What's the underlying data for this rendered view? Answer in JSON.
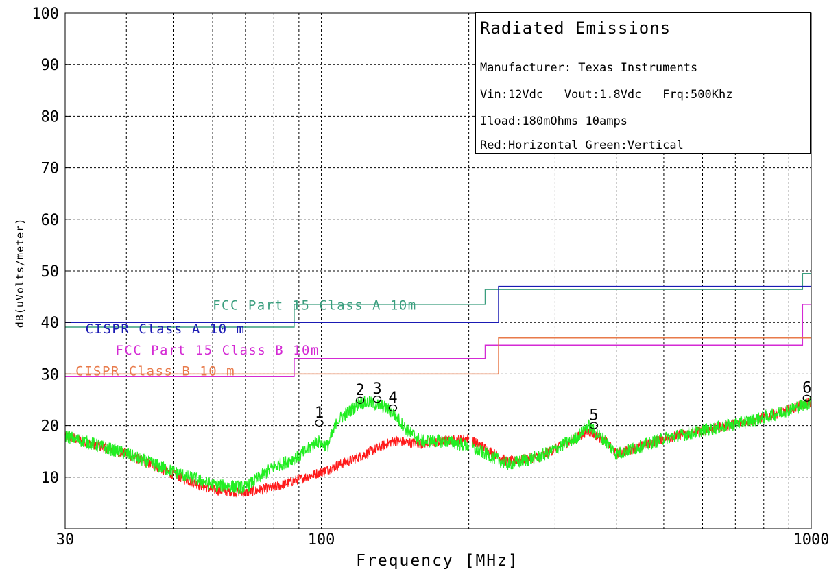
{
  "chart_data": {
    "type": "line",
    "title": "Radiated Emissions",
    "xlabel": "Frequency [MHz]",
    "ylabel": "dB(uVolts/meter)",
    "x_scale": "log",
    "xlim": [
      30,
      1000
    ],
    "ylim": [
      0,
      100
    ],
    "x_tick_labels": [
      {
        "value": 30,
        "label": "30"
      },
      {
        "value": 100,
        "label": "100"
      },
      {
        "value": 1000,
        "label": "1000"
      }
    ],
    "y_tick_labels": [
      "10",
      "20",
      "30",
      "40",
      "50",
      "60",
      "70",
      "80",
      "90",
      "100"
    ],
    "y_ticks": [
      10,
      20,
      30,
      40,
      50,
      60,
      70,
      80,
      90,
      100
    ],
    "grid": true,
    "info": {
      "manufacturer": "Manufacturer: Texas Instruments",
      "conditions": "Vin:12Vdc   Vout:1.8Vdc   Frq:500Khz",
      "load": "Iload:180mOhms 10amps",
      "legend": "Red:Horizontal Green:Vertical"
    },
    "limit_lines": [
      {
        "name": "FCC Part 15 Class A 10m",
        "color": "#3a9e7e",
        "points": [
          [
            30,
            39.1
          ],
          [
            88,
            39.1
          ],
          [
            88,
            43.5
          ],
          [
            216,
            43.5
          ],
          [
            216,
            46.4
          ],
          [
            960,
            46.4
          ],
          [
            960,
            49.5
          ],
          [
            1000,
            49.5
          ]
        ],
        "label": {
          "x": 60,
          "y": 42.5
        }
      },
      {
        "name": "CISPR Class A 10 m",
        "color": "#1a1ab4",
        "points": [
          [
            30,
            40
          ],
          [
            230,
            40
          ],
          [
            230,
            47
          ],
          [
            1000,
            47
          ]
        ],
        "label": {
          "x": 33,
          "y": 37.9
        }
      },
      {
        "name": "FCC Part 15  Class B 10m",
        "color": "#d42ad4",
        "points": [
          [
            30,
            29.5
          ],
          [
            88,
            29.5
          ],
          [
            88,
            33
          ],
          [
            216,
            33
          ],
          [
            216,
            35.6
          ],
          [
            960,
            35.6
          ],
          [
            960,
            43.5
          ],
          [
            1000,
            43.5
          ]
        ],
        "label": {
          "x": 38,
          "y": 33.8
        }
      },
      {
        "name": "CISPR Class B 10 m",
        "color": "#e87a4a",
        "points": [
          [
            30,
            30
          ],
          [
            230,
            30
          ],
          [
            230,
            37
          ],
          [
            1000,
            37
          ]
        ],
        "label": {
          "x": 31.5,
          "y": 29.7
        }
      }
    ],
    "series": [
      {
        "name": "Horizontal",
        "color": "#ff1a1a",
        "x": [
          30,
          40,
          50,
          60,
          70,
          80,
          100,
          120,
          140,
          160,
          180,
          200,
          240,
          280,
          330,
          350,
          380,
          400,
          450,
          500,
          600,
          800,
          1000
        ],
        "y": [
          18,
          14.5,
          10.5,
          7.5,
          7,
          8,
          11,
          14,
          17,
          16.5,
          17,
          17.5,
          13,
          14,
          17.5,
          19,
          17,
          14.5,
          16,
          17.5,
          19,
          21.5,
          24.5
        ],
        "noise": 1.0
      },
      {
        "name": "Vertical",
        "color": "#22ee22",
        "x": [
          30,
          40,
          50,
          60,
          70,
          80,
          90,
          98,
          103,
          108,
          115,
          120,
          125,
          130,
          135,
          140,
          150,
          160,
          180,
          200,
          240,
          280,
          330,
          350,
          380,
          400,
          450,
          500,
          600,
          800,
          1000
        ],
        "y": [
          18,
          14.5,
          11,
          8.5,
          8,
          12,
          14,
          17,
          16,
          21,
          23,
          24.5,
          24.5,
          24,
          23.5,
          22.5,
          19,
          17,
          17,
          16,
          12.5,
          14,
          17.5,
          20,
          17,
          14.5,
          16,
          17.5,
          19,
          21.5,
          24.5
        ],
        "noise": 1.3
      }
    ],
    "gap": [
      200,
      203
    ],
    "markers": [
      {
        "label": "1",
        "x": 99,
        "y": 20.5
      },
      {
        "label": "2",
        "x": 120,
        "y": 24.9
      },
      {
        "label": "3",
        "x": 130,
        "y": 25.1
      },
      {
        "label": "4",
        "x": 140,
        "y": 23.4
      },
      {
        "label": "5",
        "x": 360,
        "y": 20
      },
      {
        "label": "6",
        "x": 980,
        "y": 25.3
      }
    ]
  }
}
